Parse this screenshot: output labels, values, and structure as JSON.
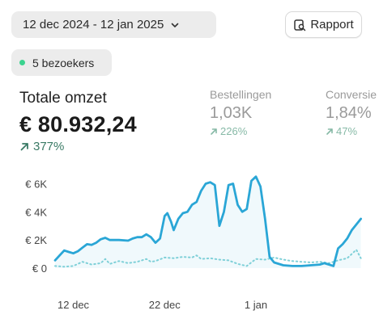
{
  "header": {
    "date_range": "12 dec 2024 - 12 jan 2025",
    "report_label": "Rapport"
  },
  "visitors": {
    "label": "5 bezoekers"
  },
  "metrics": {
    "main": {
      "label": "Totale omzet",
      "value": "€ 80.932,24",
      "change": "377%"
    },
    "orders": {
      "label": "Bestellingen",
      "value": "1,03K",
      "change": "226%"
    },
    "conversion": {
      "label": "Conversie",
      "value": "1,84%",
      "change": "47%"
    }
  },
  "colors": {
    "line": "#2aa6d6",
    "comparison": "#7fd0d8",
    "positive": "#3a7a65",
    "visitor_dot": "#3bd38f"
  },
  "chart_data": {
    "type": "line",
    "y_ticks": [
      "€ 6K",
      "€ 4K",
      "€ 2K",
      "€ 0"
    ],
    "y_tick_values": [
      6000,
      4000,
      2000,
      0
    ],
    "ylim": [
      0,
      6600
    ],
    "x_ticks": [
      "12 dec",
      "22 dec",
      "1 jan"
    ],
    "x_tick_positions": [
      0,
      10,
      20
    ],
    "xlim": [
      -2,
      31
    ],
    "series": [
      {
        "style": "solid",
        "values": [
          [
            -2,
            550
          ],
          [
            -1.5,
            900
          ],
          [
            -1.0,
            1250
          ],
          [
            -0.5,
            1150
          ],
          [
            0,
            1050
          ],
          [
            0.5,
            1200
          ],
          [
            1.0,
            1450
          ],
          [
            1.5,
            1700
          ],
          [
            2,
            1650
          ],
          [
            2.5,
            1800
          ],
          [
            3,
            2050
          ],
          [
            3.5,
            2150
          ],
          [
            4,
            2000
          ],
          [
            5,
            2000
          ],
          [
            6,
            1950
          ],
          [
            6.5,
            2100
          ],
          [
            7,
            2200
          ],
          [
            7.5,
            2200
          ],
          [
            8,
            2400
          ],
          [
            8.5,
            2200
          ],
          [
            9,
            1800
          ],
          [
            9.5,
            2100
          ],
          [
            10,
            3700
          ],
          [
            10.3,
            3900
          ],
          [
            10.7,
            3300
          ],
          [
            11,
            2700
          ],
          [
            11.5,
            3500
          ],
          [
            12,
            3900
          ],
          [
            12.5,
            4000
          ],
          [
            13,
            4500
          ],
          [
            13.5,
            4700
          ],
          [
            14,
            5500
          ],
          [
            14.5,
            6000
          ],
          [
            15,
            6100
          ],
          [
            15.5,
            5900
          ],
          [
            16,
            3000
          ],
          [
            16.5,
            4000
          ],
          [
            17,
            5900
          ],
          [
            17.5,
            6000
          ],
          [
            18,
            4500
          ],
          [
            18.5,
            4000
          ],
          [
            19,
            4200
          ],
          [
            19.5,
            6200
          ],
          [
            20,
            6500
          ],
          [
            20.5,
            5800
          ],
          [
            21,
            3500
          ],
          [
            21.5,
            800
          ],
          [
            22,
            400
          ],
          [
            23,
            200
          ],
          [
            24,
            150
          ],
          [
            25,
            150
          ],
          [
            26,
            200
          ],
          [
            27,
            250
          ],
          [
            27.5,
            350
          ],
          [
            28,
            250
          ],
          [
            28.5,
            150
          ],
          [
            29,
            1400
          ],
          [
            29.5,
            1700
          ],
          [
            30,
            2100
          ],
          [
            30.5,
            2700
          ],
          [
            31,
            3100
          ],
          [
            31.5,
            3500
          ]
        ]
      },
      {
        "style": "dotted",
        "values": [
          [
            -2,
            150
          ],
          [
            -1,
            100
          ],
          [
            0,
            150
          ],
          [
            1,
            450
          ],
          [
            2,
            250
          ],
          [
            3,
            350
          ],
          [
            3.5,
            650
          ],
          [
            4,
            300
          ],
          [
            5,
            500
          ],
          [
            6,
            350
          ],
          [
            7,
            450
          ],
          [
            8,
            650
          ],
          [
            8.5,
            450
          ],
          [
            9,
            500
          ],
          [
            10,
            750
          ],
          [
            11,
            700
          ],
          [
            12,
            800
          ],
          [
            13,
            750
          ],
          [
            13.5,
            900
          ],
          [
            14,
            650
          ],
          [
            15,
            700
          ],
          [
            16,
            600
          ],
          [
            17,
            550
          ],
          [
            18,
            300
          ],
          [
            19,
            150
          ],
          [
            20,
            650
          ],
          [
            21,
            600
          ],
          [
            22,
            750
          ],
          [
            23,
            600
          ],
          [
            24,
            500
          ],
          [
            25,
            450
          ],
          [
            26,
            400
          ],
          [
            27,
            450
          ],
          [
            28,
            350
          ],
          [
            29,
            550
          ],
          [
            30,
            700
          ],
          [
            31,
            1300
          ],
          [
            31.5,
            700
          ]
        ]
      }
    ]
  }
}
